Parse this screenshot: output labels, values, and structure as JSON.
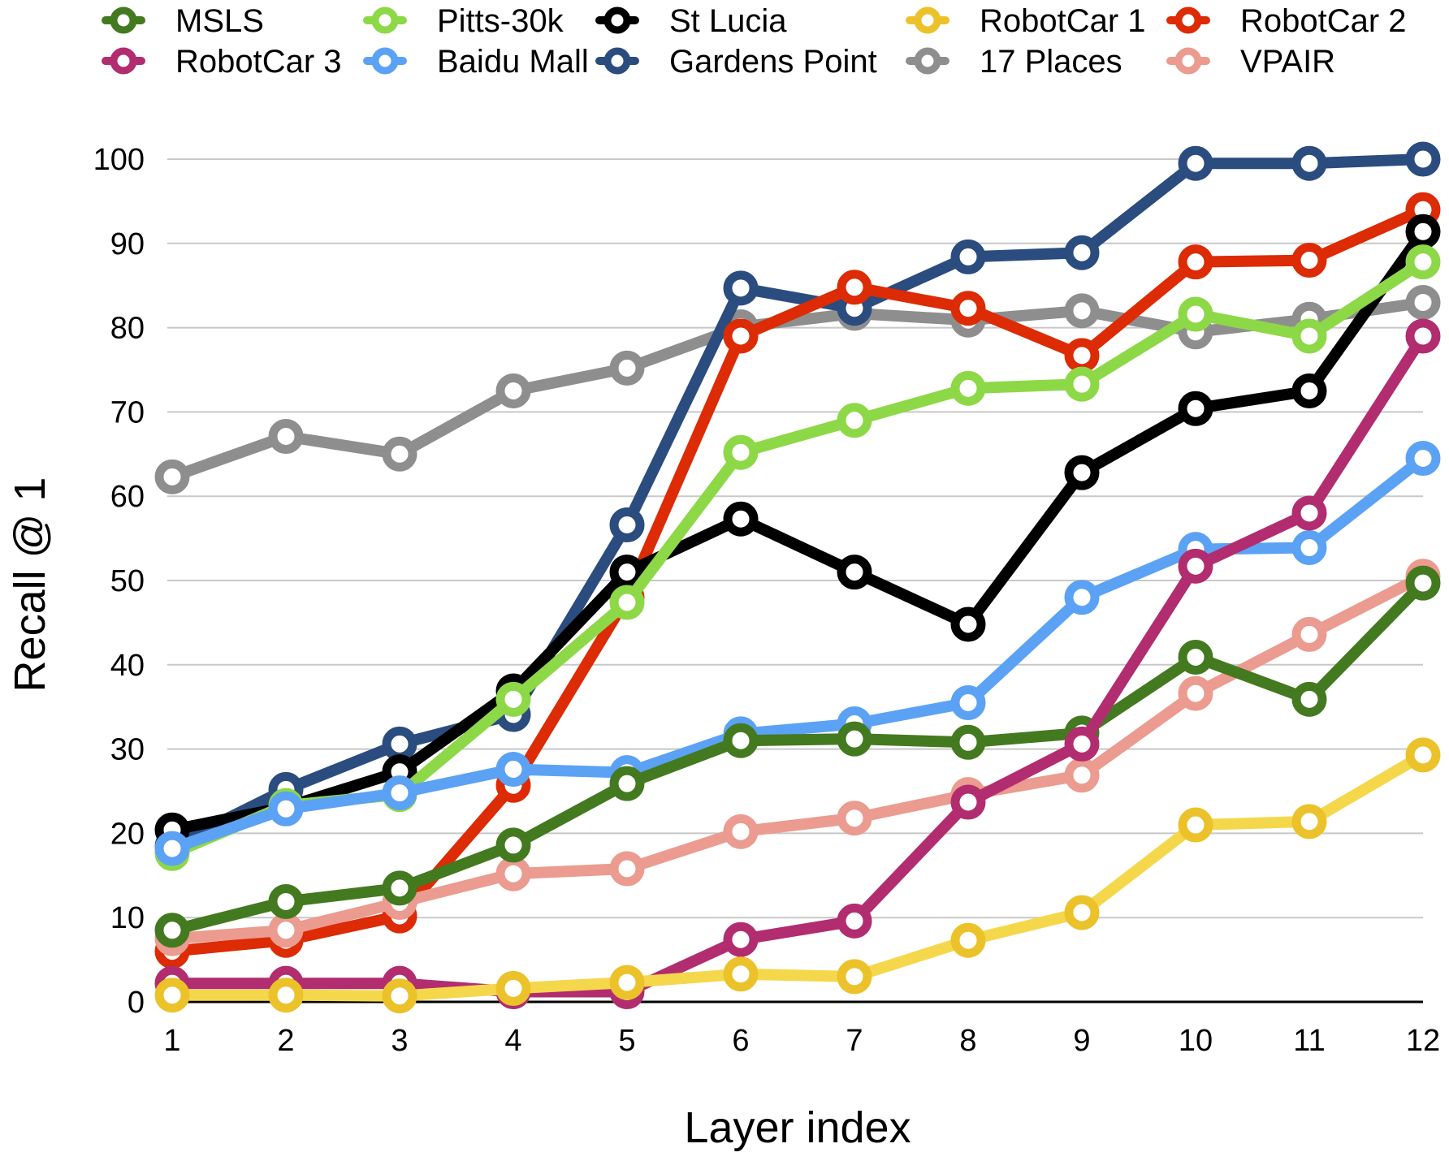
{
  "chart_data": {
    "type": "line",
    "title": "",
    "xlabel": "Layer index",
    "ylabel": "Recall @ 1",
    "x": [
      1,
      2,
      3,
      4,
      5,
      6,
      7,
      8,
      9,
      10,
      11,
      12
    ],
    "ylim": [
      0,
      100
    ],
    "yticks": [
      0,
      10,
      20,
      30,
      40,
      50,
      60,
      70,
      80,
      90,
      100
    ],
    "grid": "horizontal",
    "legend_position": "top",
    "series": [
      {
        "name": "17 Places",
        "color": "#8e8e8e",
        "values": [
          62.3,
          67.1,
          65.0,
          72.5,
          75.2,
          80.1,
          81.7,
          80.9,
          82.0,
          79.5,
          81.0,
          83.0
        ]
      },
      {
        "name": "Gardens Point",
        "color": "#2b4c7e",
        "values": [
          18.5,
          25.2,
          30.6,
          34.1,
          56.6,
          84.7,
          82.3,
          88.4,
          88.9,
          99.5,
          99.5,
          100.0
        ]
      },
      {
        "name": "RobotCar 2",
        "color": "#dc2b05",
        "values": [
          6.0,
          7.3,
          10.2,
          25.7,
          48.0,
          79.0,
          84.8,
          82.3,
          76.7,
          87.8,
          88.0,
          94.0
        ]
      },
      {
        "name": "St Lucia",
        "color": "#000000",
        "values": [
          20.4,
          23.1,
          27.3,
          36.9,
          51.0,
          57.3,
          51.0,
          44.8,
          62.8,
          70.4,
          72.5,
          91.4
        ]
      },
      {
        "name": "Pitts-30k",
        "color": "#8dd847",
        "values": [
          17.6,
          23.3,
          24.6,
          35.9,
          47.4,
          65.2,
          69.0,
          72.8,
          73.3,
          81.6,
          79.0,
          87.8
        ]
      },
      {
        "name": "Baidu Mall",
        "color": "#5ba2f5",
        "values": [
          18.2,
          22.9,
          24.8,
          27.6,
          27.2,
          31.8,
          33.0,
          35.5,
          48.0,
          53.7,
          53.9,
          64.5
        ]
      },
      {
        "name": "VPAIR",
        "color": "#eb9b8f",
        "values": [
          7.5,
          8.5,
          11.8,
          15.2,
          15.8,
          20.2,
          21.8,
          24.6,
          26.9,
          36.6,
          43.6,
          50.5
        ]
      },
      {
        "name": "MSLS",
        "color": "#437a1f",
        "values": [
          8.5,
          11.9,
          13.5,
          18.6,
          25.9,
          31.0,
          31.2,
          30.8,
          31.9,
          40.9,
          35.9,
          49.7
        ]
      },
      {
        "name": "RobotCar 3",
        "color": "#b22d6f",
        "values": [
          2.2,
          2.2,
          2.2,
          1.2,
          1.2,
          7.4,
          9.6,
          23.7,
          30.6,
          51.7,
          58.0,
          79.0
        ]
      },
      {
        "name": "RobotCar 1",
        "color": "#ecc22a",
        "lineColor": "#f5d74c",
        "values": [
          0.8,
          0.8,
          0.7,
          1.6,
          2.3,
          3.3,
          3.0,
          7.3,
          10.6,
          21.0,
          21.4,
          29.3
        ]
      }
    ],
    "legend": [
      {
        "name": "MSLS",
        "color": "#437a1f"
      },
      {
        "name": "Pitts-30k",
        "color": "#8dd847"
      },
      {
        "name": "St Lucia",
        "color": "#000000"
      },
      {
        "name": "RobotCar 1",
        "color": "#ecc22a"
      },
      {
        "name": "RobotCar 2",
        "color": "#dc2b05"
      },
      {
        "name": "RobotCar 3",
        "color": "#b22d6f"
      },
      {
        "name": "Baidu Mall",
        "color": "#5ba2f5"
      },
      {
        "name": "Gardens Point",
        "color": "#2b4c7e"
      },
      {
        "name": "17 Places",
        "color": "#8e8e8e"
      },
      {
        "name": "VPAIR",
        "color": "#eb9b8f"
      }
    ]
  }
}
